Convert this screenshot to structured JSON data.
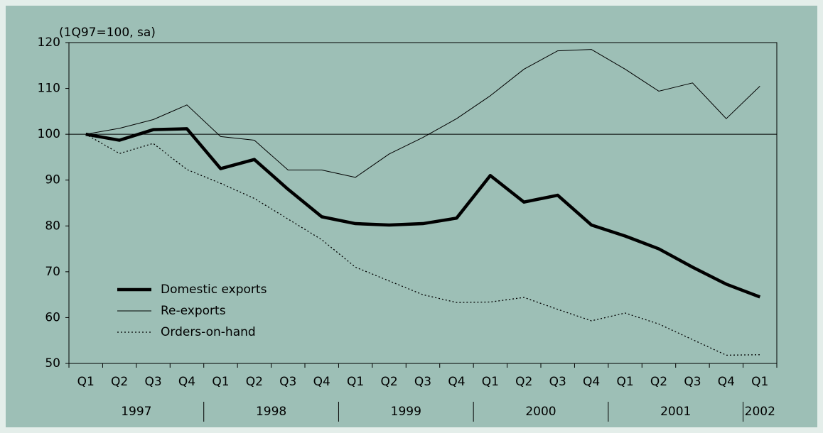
{
  "chart_data": {
    "type": "line",
    "y_axis_label": "(1Q97=100, sa)",
    "categories": [
      "Q1",
      "Q2",
      "Q3",
      "Q4",
      "Q1",
      "Q2",
      "Q3",
      "Q4",
      "Q1",
      "Q2",
      "Q3",
      "Q4",
      "Q1",
      "Q2",
      "Q3",
      "Q4",
      "Q1",
      "Q2",
      "Q3",
      "Q4",
      "Q1"
    ],
    "years": [
      "1997",
      "1998",
      "1999",
      "2000",
      "2001",
      "2002"
    ],
    "series": [
      {
        "name": "Domestic exports",
        "color": "#000000",
        "style": "thick",
        "values": [
          100,
          98.7,
          101,
          101.2,
          92.5,
          94.5,
          88,
          82,
          80.5,
          80.2,
          80.5,
          81.7,
          91,
          85.2,
          86.7,
          80.2,
          77.8,
          75,
          71,
          67.3,
          64.5
        ]
      },
      {
        "name": "Re-exports",
        "color": "#000000",
        "style": "thin",
        "values": [
          100,
          101.3,
          103.2,
          106.4,
          99.5,
          98.7,
          92.2,
          92.2,
          90.6,
          95.7,
          99.3,
          103.4,
          108.4,
          114.2,
          118.2,
          118.5,
          114.2,
          109.4,
          111.2,
          103.4,
          110.5
        ]
      },
      {
        "name": "Orders-on-hand",
        "color": "#000000",
        "style": "dotted",
        "values": [
          100,
          95.8,
          98,
          92.3,
          89.3,
          86,
          81.5,
          77,
          71,
          68,
          65,
          63.3,
          63.4,
          64.4,
          61.8,
          59.3,
          61,
          58.6,
          55.2,
          51.8,
          51.9
        ]
      }
    ],
    "reference_line": 100,
    "ylim": [
      50,
      120
    ],
    "yticks": [
      50,
      60,
      70,
      80,
      90,
      100,
      110,
      120
    ],
    "legend": "lower-left"
  }
}
